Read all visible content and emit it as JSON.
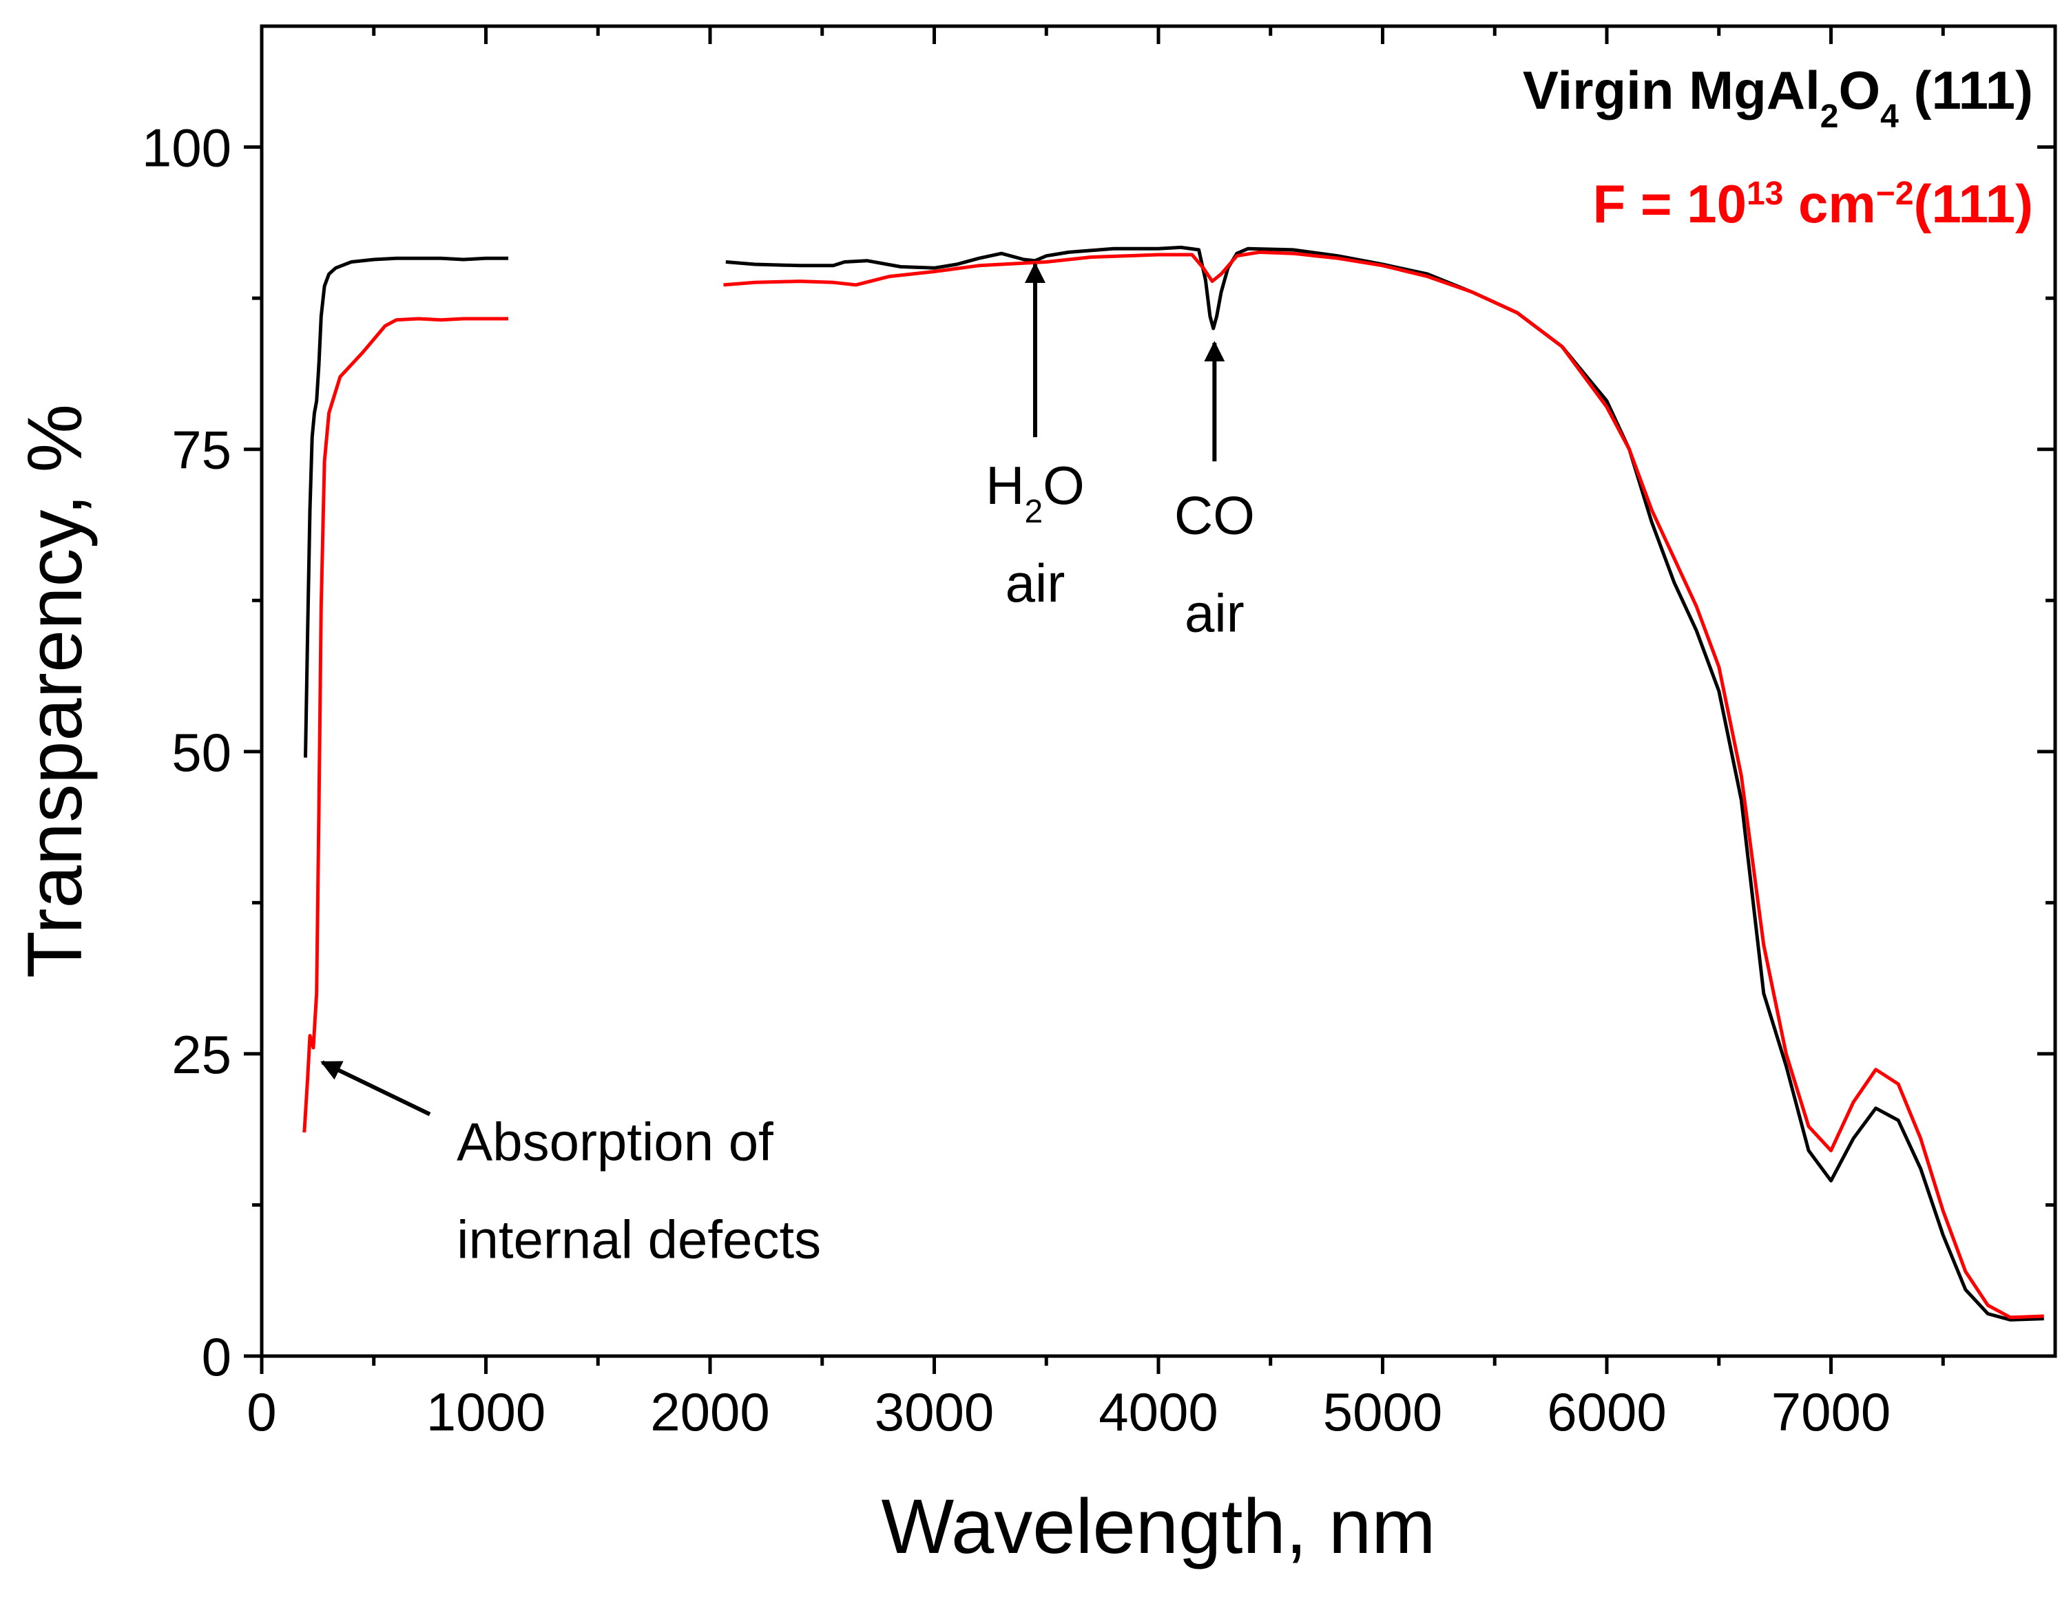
{
  "chart_data": {
    "type": "line",
    "xlabel": "Wavelength, nm",
    "ylabel": "Transparency, %",
    "xlim": [
      0,
      8000
    ],
    "ylim": [
      0,
      110
    ],
    "x_ticks": [
      0,
      1000,
      2000,
      3000,
      4000,
      5000,
      6000,
      7000
    ],
    "y_ticks": [
      0,
      25,
      50,
      75,
      100
    ],
    "legend": {
      "position": "top-right",
      "entries": [
        {
          "series": 0,
          "parts": [
            [
              "Virgin MgAl",
              ""
            ],
            [
              "2",
              "sub"
            ],
            [
              "O",
              ""
            ],
            [
              "4",
              "sub"
            ],
            [
              " (111)",
              ""
            ]
          ]
        },
        {
          "series": 1,
          "parts": [
            [
              "F = 10",
              ""
            ],
            [
              "13",
              "sup"
            ],
            [
              " cm",
              ""
            ],
            [
              "−2",
              "sup"
            ],
            [
              "(111)",
              ""
            ]
          ]
        }
      ]
    },
    "series": [
      {
        "name": "Virgin MgAl2O4 (111)",
        "color": "#000000",
        "segments": [
          [
            [
              195,
              49.5
            ],
            [
              205,
              60
            ],
            [
              215,
              70
            ],
            [
              225,
              76
            ],
            [
              235,
              78
            ],
            [
              245,
              79
            ],
            [
              255,
              82
            ],
            [
              265,
              86
            ],
            [
              280,
              88.5
            ],
            [
              300,
              89.5
            ],
            [
              330,
              90
            ],
            [
              400,
              90.5
            ],
            [
              500,
              90.7
            ],
            [
              600,
              90.8
            ],
            [
              700,
              90.8
            ],
            [
              800,
              90.8
            ],
            [
              900,
              90.7
            ],
            [
              1000,
              90.8
            ],
            [
              1100,
              90.8
            ]
          ],
          [
            [
              2070,
              90.5
            ],
            [
              2200,
              90.3
            ],
            [
              2400,
              90.2
            ],
            [
              2550,
              90.2
            ],
            [
              2600,
              90.5
            ],
            [
              2700,
              90.6
            ],
            [
              2850,
              90.1
            ],
            [
              3000,
              90.0
            ],
            [
              3100,
              90.3
            ],
            [
              3200,
              90.8
            ],
            [
              3300,
              91.2
            ],
            [
              3400,
              90.7
            ],
            [
              3450,
              90.6
            ],
            [
              3500,
              91.0
            ],
            [
              3600,
              91.3
            ],
            [
              3800,
              91.6
            ],
            [
              4000,
              91.6
            ],
            [
              4100,
              91.7
            ],
            [
              4180,
              91.5
            ],
            [
              4210,
              89
            ],
            [
              4230,
              86
            ],
            [
              4245,
              85
            ],
            [
              4260,
              86
            ],
            [
              4280,
              88
            ],
            [
              4310,
              90
            ],
            [
              4350,
              91.2
            ],
            [
              4400,
              91.6
            ],
            [
              4600,
              91.5
            ],
            [
              4800,
              91.0
            ],
            [
              5000,
              90.3
            ],
            [
              5200,
              89.5
            ],
            [
              5400,
              88.0
            ],
            [
              5600,
              86.3
            ],
            [
              5800,
              83.5
            ],
            [
              6000,
              79.0
            ],
            [
              6100,
              75.0
            ],
            [
              6200,
              69.0
            ],
            [
              6300,
              64.0
            ],
            [
              6400,
              60.0
            ],
            [
              6500,
              55.0
            ],
            [
              6600,
              46.0
            ],
            [
              6700,
              30.0
            ],
            [
              6800,
              24.0
            ],
            [
              6900,
              17.0
            ],
            [
              7000,
              14.5
            ],
            [
              7100,
              18.0
            ],
            [
              7200,
              20.5
            ],
            [
              7300,
              19.5
            ],
            [
              7400,
              15.5
            ],
            [
              7500,
              10.0
            ],
            [
              7600,
              5.5
            ],
            [
              7700,
              3.5
            ],
            [
              7800,
              3.0
            ],
            [
              7950,
              3.1
            ]
          ]
        ]
      },
      {
        "name": "F = 10^13 cm^-2 (111)",
        "color": "#ff0000",
        "segments": [
          [
            [
              190,
              18.5
            ],
            [
              205,
              23
            ],
            [
              215,
              26.5
            ],
            [
              230,
              25.5
            ],
            [
              245,
              30
            ],
            [
              255,
              45
            ],
            [
              265,
              62
            ],
            [
              280,
              74
            ],
            [
              300,
              78
            ],
            [
              350,
              81
            ],
            [
              450,
              83
            ],
            [
              550,
              85.2
            ],
            [
              600,
              85.7
            ],
            [
              700,
              85.8
            ],
            [
              800,
              85.7
            ],
            [
              900,
              85.8
            ],
            [
              1000,
              85.8
            ],
            [
              1100,
              85.8
            ]
          ],
          [
            [
              2060,
              88.6
            ],
            [
              2200,
              88.8
            ],
            [
              2400,
              88.9
            ],
            [
              2550,
              88.8
            ],
            [
              2650,
              88.6
            ],
            [
              2800,
              89.3
            ],
            [
              3000,
              89.7
            ],
            [
              3200,
              90.2
            ],
            [
              3400,
              90.4
            ],
            [
              3500,
              90.5
            ],
            [
              3700,
              90.9
            ],
            [
              4000,
              91.1
            ],
            [
              4150,
              91.1
            ],
            [
              4200,
              90.0
            ],
            [
              4240,
              88.9
            ],
            [
              4280,
              89.5
            ],
            [
              4350,
              91.0
            ],
            [
              4450,
              91.3
            ],
            [
              4600,
              91.2
            ],
            [
              4800,
              90.8
            ],
            [
              5000,
              90.2
            ],
            [
              5200,
              89.3
            ],
            [
              5400,
              88.0
            ],
            [
              5600,
              86.3
            ],
            [
              5800,
              83.5
            ],
            [
              5900,
              81.0
            ],
            [
              6000,
              78.5
            ],
            [
              6100,
              75.0
            ],
            [
              6200,
              70.0
            ],
            [
              6300,
              66.0
            ],
            [
              6400,
              62.0
            ],
            [
              6500,
              57.0
            ],
            [
              6600,
              48.0
            ],
            [
              6700,
              34.0
            ],
            [
              6800,
              25.0
            ],
            [
              6900,
              19.0
            ],
            [
              7000,
              17.0
            ],
            [
              7100,
              21.0
            ],
            [
              7200,
              23.7
            ],
            [
              7300,
              22.5
            ],
            [
              7400,
              18.0
            ],
            [
              7500,
              12.0
            ],
            [
              7600,
              7.0
            ],
            [
              7700,
              4.2
            ],
            [
              7800,
              3.2
            ],
            [
              7950,
              3.3
            ]
          ]
        ]
      }
    ],
    "annotations": [
      {
        "id": "h2o",
        "parts": [
          [
            "H",
            ""
          ],
          [
            "2",
            "sub"
          ],
          [
            "O",
            ""
          ]
        ],
        "line2": "air",
        "arrow_x": 3450,
        "arrow_y_from": 76,
        "arrow_y_to": 90.3,
        "text_x": 3450,
        "text_y": 70.5
      },
      {
        "id": "co",
        "parts": [
          [
            "CO",
            ""
          ]
        ],
        "line2": "air",
        "arrow_x": 4250,
        "arrow_y_from": 74,
        "arrow_y_to": 83.8,
        "text_x": 4250,
        "text_y": 68
      },
      {
        "id": "defects",
        "lines": [
          "Absorption of",
          "internal defects"
        ],
        "from_x": 750,
        "from_y": 20,
        "to_x": 270,
        "to_y": 24.3,
        "text_x": 870,
        "text_y": 16.2
      }
    ]
  }
}
